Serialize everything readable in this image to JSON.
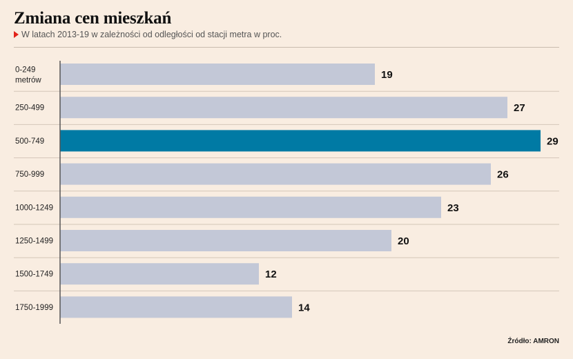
{
  "title": "Zmiana cen mieszkań",
  "subtitle": "W latach 2013-19 w zależności od odległości od stacji metra w proc.",
  "source": "Źródło: AMRON",
  "colors": {
    "background": "#f9ede1",
    "bar": "#c3c8d7",
    "highlight": "#007aa4",
    "axis": "#555555",
    "separator": "#d4c6b8",
    "marker": "#e2231a"
  },
  "chart_data": {
    "type": "bar",
    "orientation": "horizontal",
    "categories": [
      [
        "0-249",
        "metrów"
      ],
      [
        "250-499"
      ],
      [
        "500-749"
      ],
      [
        "750-999"
      ],
      [
        "1000-1249"
      ],
      [
        "1250-1499"
      ],
      [
        "1500-1749"
      ],
      [
        "1750-1999"
      ]
    ],
    "values": [
      19,
      27,
      29,
      26,
      23,
      20,
      12,
      14
    ],
    "highlight_index": 2,
    "xlim": [
      0,
      29
    ],
    "grid": false,
    "legend": "none",
    "xlabel": "",
    "ylabel": ""
  }
}
